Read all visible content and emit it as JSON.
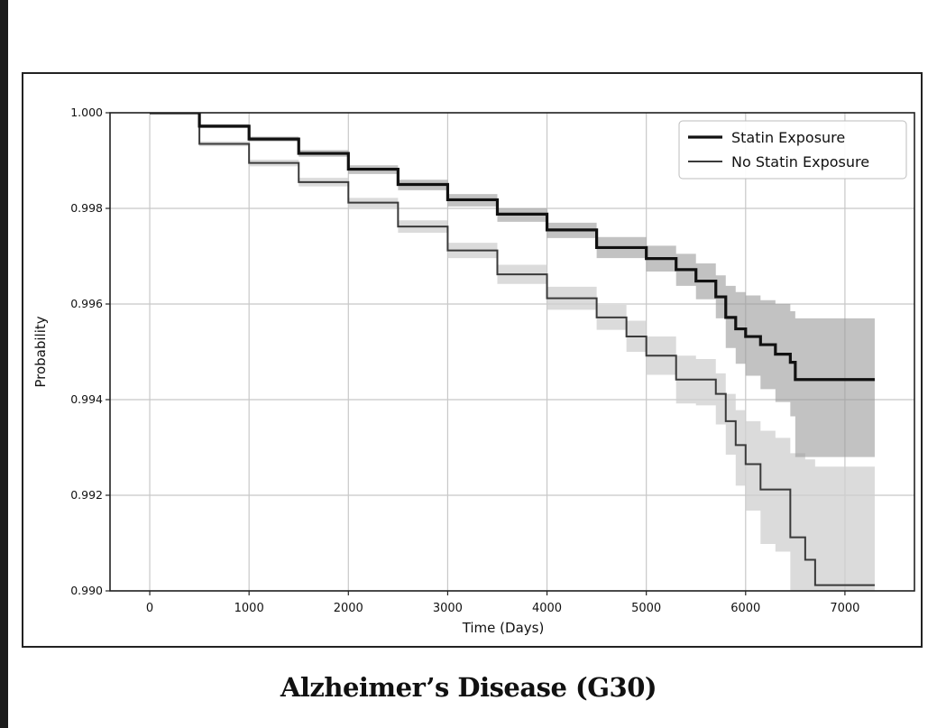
{
  "caption": "Alzheimer’s Disease (G30)",
  "colors": {
    "statin_line": "#111111",
    "no_statin_line": "#3a3a3a",
    "statin_band": "#9a9a9a",
    "no_statin_band": "#cfcfcf",
    "grid": "#c8c8c8",
    "axis": "#222222"
  },
  "chart_data": {
    "type": "line",
    "title": "",
    "xlabel": "Time (Days)",
    "ylabel": "Probability",
    "xlim": [
      -400,
      7700
    ],
    "ylim": [
      0.99,
      1.0
    ],
    "x_ticks": [
      0,
      1000,
      2000,
      3000,
      4000,
      5000,
      6000,
      7000
    ],
    "x_tick_labels": [
      "0",
      "1000",
      "2000",
      "3000",
      "4000",
      "5000",
      "6000",
      "7000"
    ],
    "y_ticks": [
      0.99,
      0.992,
      0.994,
      0.996,
      0.998,
      1.0
    ],
    "y_tick_labels": [
      "0.990",
      "0.992",
      "0.994",
      "0.996",
      "0.998",
      "1.000"
    ],
    "grid": true,
    "legend_position": "top-right",
    "series": [
      {
        "name": "Statin Exposure",
        "style": "thick",
        "x": [
          0,
          500,
          1000,
          1500,
          2000,
          2500,
          3000,
          3500,
          4000,
          4500,
          5000,
          5300,
          5500,
          5700,
          5800,
          5900,
          6000,
          6150,
          6300,
          6450,
          6500,
          7300
        ],
        "y": [
          1.0,
          0.99972,
          0.99945,
          0.99915,
          0.99882,
          0.9985,
          0.99818,
          0.99788,
          0.99755,
          0.99718,
          0.99695,
          0.99672,
          0.99648,
          0.99615,
          0.99572,
          0.99548,
          0.99532,
          0.99515,
          0.99495,
          0.99478,
          0.99442,
          0.99442
        ],
        "ci_upper": [
          1.0,
          0.99976,
          0.9995,
          0.99922,
          0.9989,
          0.9986,
          0.9983,
          0.998,
          0.9977,
          0.9974,
          0.99722,
          0.99705,
          0.99685,
          0.9966,
          0.99638,
          0.99625,
          0.99618,
          0.99608,
          0.996,
          0.99585,
          0.9957,
          0.9957
        ],
        "ci_lower": [
          1.0,
          0.99968,
          0.9994,
          0.99908,
          0.99872,
          0.99838,
          0.99804,
          0.99772,
          0.99738,
          0.99696,
          0.99668,
          0.99638,
          0.9961,
          0.9957,
          0.99508,
          0.99475,
          0.9945,
          0.99422,
          0.99395,
          0.99365,
          0.9928,
          0.9928
        ]
      },
      {
        "name": "No Statin Exposure",
        "style": "thin",
        "x": [
          0,
          500,
          1000,
          1500,
          2000,
          2500,
          3000,
          3500,
          4000,
          4500,
          4800,
          5000,
          5300,
          5500,
          5700,
          5800,
          5900,
          6000,
          6150,
          6300,
          6450,
          6600,
          6700,
          7300
        ],
        "y": [
          1.0,
          0.99935,
          0.99895,
          0.99855,
          0.99812,
          0.99762,
          0.99712,
          0.99662,
          0.99612,
          0.99572,
          0.99532,
          0.99492,
          0.99442,
          0.99442,
          0.99412,
          0.99355,
          0.99305,
          0.99265,
          0.99212,
          0.99212,
          0.99112,
          0.99065,
          0.99012,
          0.99012
        ],
        "ci_upper": [
          1.0,
          0.9994,
          0.99902,
          0.99864,
          0.99822,
          0.99775,
          0.99728,
          0.99682,
          0.99636,
          0.99598,
          0.99565,
          0.99532,
          0.99492,
          0.99485,
          0.99455,
          0.99412,
          0.99378,
          0.99355,
          0.99335,
          0.9932,
          0.99288,
          0.99275,
          0.9926,
          0.9926
        ],
        "ci_lower": [
          1.0,
          0.9993,
          0.99888,
          0.99846,
          0.99802,
          0.99749,
          0.99696,
          0.99642,
          0.99588,
          0.99546,
          0.995,
          0.99452,
          0.99392,
          0.99388,
          0.99348,
          0.99285,
          0.9922,
          0.99168,
          0.99098,
          0.99082,
          0.98995,
          0.9899,
          0.9899,
          0.9899
        ]
      }
    ]
  }
}
